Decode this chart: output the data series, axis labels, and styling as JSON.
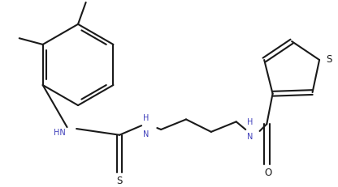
{
  "bg_color": "#ffffff",
  "line_color": "#1a1a1a",
  "nh_color": "#4040bb",
  "s_color": "#1a1a1a",
  "o_color": "#1a1a1a",
  "line_width": 1.5,
  "figsize": [
    4.16,
    2.31
  ],
  "dpi": 100,
  "xlim": [
    0,
    416
  ],
  "ylim": [
    0,
    231
  ]
}
